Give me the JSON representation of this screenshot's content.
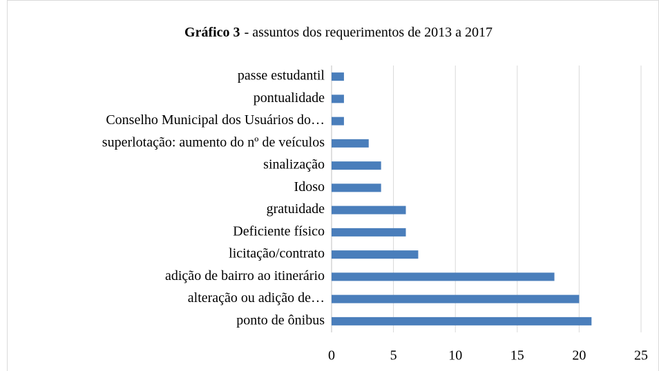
{
  "chart_data": {
    "type": "barh",
    "title_parts": [
      "Gráfico 3",
      "- assuntos dos requerimentos de 2013 a 2017"
    ],
    "categories": [
      "passe estudantil",
      "pontualidade",
      "Conselho Municipal dos Usuários do…",
      "superlotação: aumento do nº de veículos",
      "sinalização",
      "Idoso",
      "gratuidade",
      "Deficiente físico",
      "licitação/contrato",
      "adição de bairro ao itinerário",
      "alteração ou adição de…",
      "ponto de ônibus"
    ],
    "values": [
      1,
      1,
      1,
      3,
      4,
      4,
      6,
      6,
      7,
      18,
      20,
      21
    ],
    "color": "#4a7ebb",
    "xlim": [
      0,
      25
    ],
    "xticks": [
      0,
      5,
      10,
      15,
      20,
      25
    ],
    "grid": true
  }
}
